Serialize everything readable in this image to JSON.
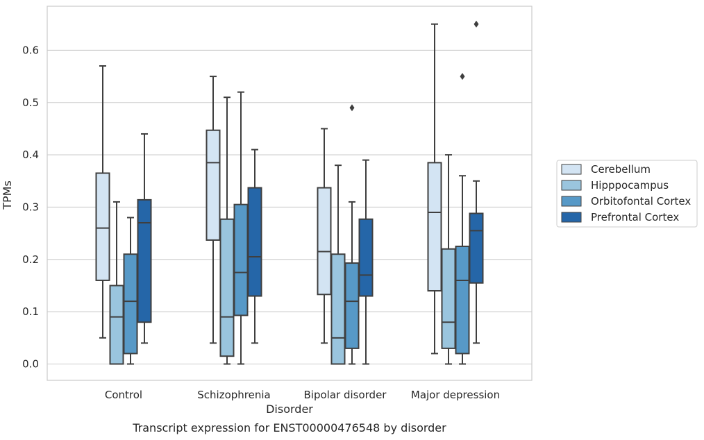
{
  "chart_data": {
    "type": "boxplot",
    "caption": "Transcript expression for ENST00000476548 by disorder",
    "xlabel": "Disorder",
    "ylabel": "TPMs",
    "ylim": [
      -0.03,
      0.68
    ],
    "yticks": [
      0.0,
      0.1,
      0.2,
      0.3,
      0.4,
      0.5,
      0.6
    ],
    "ytick_labels": [
      "0.0",
      "0.1",
      "0.2",
      "0.3",
      "0.4",
      "0.5",
      "0.6"
    ],
    "grid": "horizontal",
    "legend_position": "right",
    "categories": [
      "Control",
      "Schizophrenia",
      "Bipolar disorder",
      "Major depression"
    ],
    "series": [
      {
        "name": "Cerebellum",
        "color": "#d3e4f3",
        "boxes": [
          {
            "whislo": 0.05,
            "q1": 0.16,
            "med": 0.26,
            "q3": 0.365,
            "whishi": 0.57,
            "fliers": []
          },
          {
            "whislo": 0.04,
            "q1": 0.237,
            "med": 0.385,
            "q3": 0.447,
            "whishi": 0.55,
            "fliers": []
          },
          {
            "whislo": 0.04,
            "q1": 0.133,
            "med": 0.215,
            "q3": 0.337,
            "whishi": 0.45,
            "fliers": []
          },
          {
            "whislo": 0.02,
            "q1": 0.14,
            "med": 0.29,
            "q3": 0.385,
            "whishi": 0.65,
            "fliers": []
          }
        ]
      },
      {
        "name": "Hipppocampus",
        "color": "#9ac5de",
        "boxes": [
          {
            "whislo": 0.0,
            "q1": 0.0,
            "med": 0.09,
            "q3": 0.15,
            "whishi": 0.31,
            "fliers": []
          },
          {
            "whislo": 0.0,
            "q1": 0.015,
            "med": 0.09,
            "q3": 0.277,
            "whishi": 0.51,
            "fliers": []
          },
          {
            "whislo": 0.0,
            "q1": 0.0,
            "med": 0.05,
            "q3": 0.21,
            "whishi": 0.38,
            "fliers": []
          },
          {
            "whislo": 0.0,
            "q1": 0.03,
            "med": 0.08,
            "q3": 0.22,
            "whishi": 0.4,
            "fliers": []
          }
        ]
      },
      {
        "name": "Orbitofontal Cortex",
        "color": "#5799c7",
        "boxes": [
          {
            "whislo": 0.0,
            "q1": 0.02,
            "med": 0.12,
            "q3": 0.21,
            "whishi": 0.28,
            "fliers": []
          },
          {
            "whislo": 0.0,
            "q1": 0.093,
            "med": 0.175,
            "q3": 0.305,
            "whishi": 0.52,
            "fliers": []
          },
          {
            "whislo": 0.0,
            "q1": 0.03,
            "med": 0.12,
            "q3": 0.193,
            "whishi": 0.31,
            "fliers": [
              0.49
            ]
          },
          {
            "whislo": 0.0,
            "q1": 0.02,
            "med": 0.16,
            "q3": 0.225,
            "whishi": 0.36,
            "fliers": [
              0.55
            ]
          }
        ]
      },
      {
        "name": "Prefrontal Cortex",
        "color": "#2566a8",
        "boxes": [
          {
            "whislo": 0.04,
            "q1": 0.08,
            "med": 0.27,
            "q3": 0.314,
            "whishi": 0.44,
            "fliers": []
          },
          {
            "whislo": 0.04,
            "q1": 0.13,
            "med": 0.205,
            "q3": 0.337,
            "whishi": 0.41,
            "fliers": []
          },
          {
            "whislo": 0.0,
            "q1": 0.13,
            "med": 0.17,
            "q3": 0.277,
            "whishi": 0.39,
            "fliers": []
          },
          {
            "whislo": 0.04,
            "q1": 0.155,
            "med": 0.255,
            "q3": 0.288,
            "whishi": 0.35,
            "fliers": [
              0.65
            ]
          }
        ]
      }
    ]
  }
}
